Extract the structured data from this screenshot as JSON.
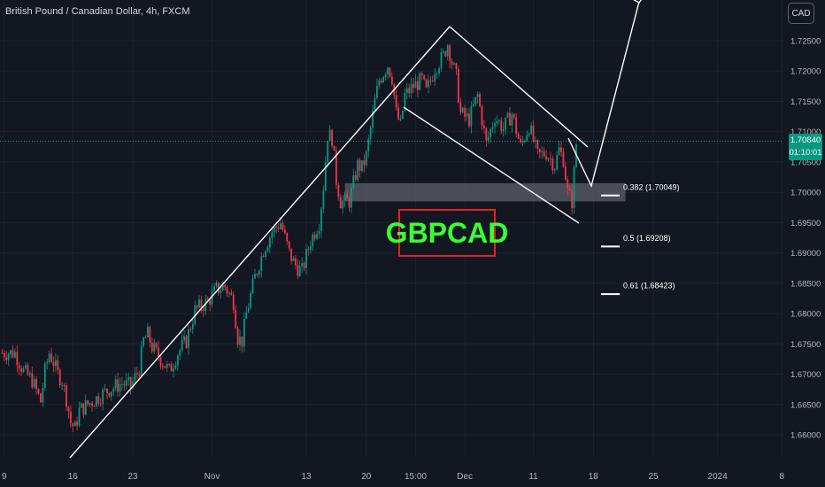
{
  "header": {
    "symbol_title": "British Pound / Canadian Dollar, 4h, FXCM",
    "currency_button": "CAD"
  },
  "price_tag": {
    "price": "1.70840",
    "countdown": "01:10:01"
  },
  "label_text": "GBPCAD",
  "fib_levels": [
    {
      "label": "0.382 (1.70049)",
      "value": 1.70049
    },
    {
      "label": "0.5 (1.69208)",
      "value": 1.69208
    },
    {
      "label": "0.61 (1.68423)",
      "value": 1.68423
    }
  ],
  "colors": {
    "background": "#131722",
    "up": "#089981",
    "down": "#f23645",
    "grid": "#1e2230",
    "label_green": "#39ff30",
    "label_border": "#e81e25",
    "zone": "#5d606b"
  },
  "chart_data": {
    "type": "candlestick",
    "title": "British Pound / Canadian Dollar, 4h, FXCM",
    "xlabel": "",
    "ylabel": "",
    "ylim": [
      1.655,
      1.728
    ],
    "y_ticks": [
      "1.72500",
      "1.72000",
      "1.71500",
      "1.71000",
      "1.70500",
      "1.70000",
      "1.69500",
      "1.69000",
      "1.68500",
      "1.68000",
      "1.67500",
      "1.67000",
      "1.66500",
      "1.66000"
    ],
    "y_tick_values": [
      1.725,
      1.72,
      1.715,
      1.71,
      1.705,
      1.7,
      1.695,
      1.69,
      1.685,
      1.68,
      1.675,
      1.67,
      1.665,
      1.66
    ],
    "x_ticks": [
      "9",
      "16",
      "23",
      "Nov",
      "13",
      "20",
      "15:00",
      "Dec",
      "11",
      "18",
      "25",
      "2024",
      "8"
    ],
    "x_tick_index": [
      1,
      33,
      61,
      98,
      142,
      170,
      193,
      216,
      248,
      276,
      304,
      334,
      364
    ],
    "last_price": 1.7084,
    "close_path": [
      [
        0,
        1.6735
      ],
      [
        6,
        1.6735
      ],
      [
        10,
        1.6705
      ],
      [
        14,
        1.669
      ],
      [
        18,
        1.6655
      ],
      [
        20,
        1.6705
      ],
      [
        22,
        1.6735
      ],
      [
        24,
        1.672
      ],
      [
        26,
        1.67
      ],
      [
        28,
        1.669
      ],
      [
        30,
        1.666
      ],
      [
        32,
        1.662
      ],
      [
        34,
        1.661
      ],
      [
        36,
        1.664
      ],
      [
        40,
        1.665
      ],
      [
        44,
        1.666
      ],
      [
        50,
        1.6675
      ],
      [
        56,
        1.6685
      ],
      [
        60,
        1.668
      ],
      [
        64,
        1.671
      ],
      [
        66,
        1.6755
      ],
      [
        68,
        1.6765
      ],
      [
        70,
        1.6745
      ],
      [
        74,
        1.6725
      ],
      [
        78,
        1.6705
      ],
      [
        82,
        1.6735
      ],
      [
        86,
        1.6755
      ],
      [
        90,
        1.6805
      ],
      [
        96,
        1.682
      ],
      [
        100,
        1.684
      ],
      [
        104,
        1.6845
      ],
      [
        108,
        1.682
      ],
      [
        110,
        1.676
      ],
      [
        112,
        1.6755
      ],
      [
        114,
        1.68
      ],
      [
        118,
        1.686
      ],
      [
        122,
        1.6905
      ],
      [
        126,
        1.6935
      ],
      [
        130,
        1.695
      ],
      [
        134,
        1.69
      ],
      [
        136,
        1.6885
      ],
      [
        138,
        1.6875
      ],
      [
        140,
        1.687
      ],
      [
        144,
        1.692
      ],
      [
        148,
        1.695
      ],
      [
        150,
        1.701
      ],
      [
        152,
        1.7095
      ],
      [
        154,
        1.709
      ],
      [
        156,
        1.702
      ],
      [
        158,
        1.6985
      ],
      [
        162,
        1.6985
      ],
      [
        166,
        1.7045
      ],
      [
        168,
        1.704
      ],
      [
        170,
        1.706
      ],
      [
        174,
        1.715
      ],
      [
        176,
        1.7185
      ],
      [
        180,
        1.721
      ],
      [
        182,
        1.719
      ],
      [
        184,
        1.713
      ],
      [
        186,
        1.711
      ],
      [
        188,
        1.716
      ],
      [
        192,
        1.7175
      ],
      [
        196,
        1.7185
      ],
      [
        198,
        1.7165
      ],
      [
        202,
        1.7205
      ],
      [
        206,
        1.7225
      ],
      [
        208,
        1.7245
      ],
      [
        210,
        1.7215
      ],
      [
        212,
        1.719
      ],
      [
        214,
        1.713
      ],
      [
        218,
        1.712
      ],
      [
        222,
        1.716
      ],
      [
        226,
        1.708
      ],
      [
        230,
        1.7125
      ],
      [
        234,
        1.7105
      ],
      [
        238,
        1.713
      ],
      [
        242,
        1.7075
      ],
      [
        246,
        1.711
      ],
      [
        250,
        1.706
      ],
      [
        254,
        1.7065
      ],
      [
        258,
        1.7045
      ],
      [
        260,
        1.707
      ],
      [
        262,
        1.7055
      ],
      [
        264,
        1.7
      ],
      [
        266,
        1.6985
      ],
      [
        268,
        1.708
      ]
    ]
  }
}
